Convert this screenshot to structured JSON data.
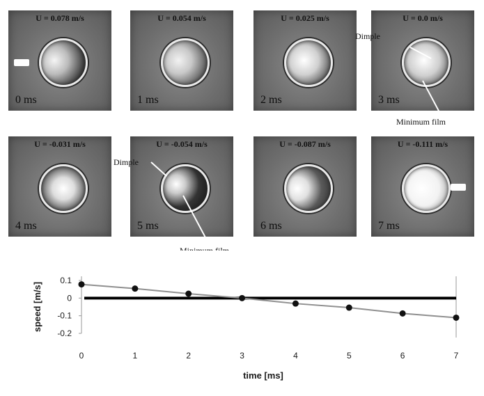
{
  "panels": [
    {
      "speed": "U = 0.078 m/s",
      "time": "0 ms"
    },
    {
      "speed": "U = 0.054 m/s",
      "time": "1 ms"
    },
    {
      "speed": "U = 0.025 m/s",
      "time": "2 ms"
    },
    {
      "speed": "U = 0.0 m/s",
      "time": "3 ms"
    },
    {
      "speed": "U = -0.031 m/s",
      "time": "4 ms"
    },
    {
      "speed": "U = -0.054 m/s",
      "time": "5 ms"
    },
    {
      "speed": "U = -0.087 m/s",
      "time": "6 ms"
    },
    {
      "speed": "U = -0.111 m/s",
      "time": "7 ms"
    }
  ],
  "annotations": {
    "dimple": "Dimple",
    "minimum_film": "Minimum film"
  },
  "chart_data": {
    "type": "line",
    "x": [
      0,
      1,
      2,
      3,
      4,
      5,
      6,
      7
    ],
    "series": [
      {
        "values": [
          0.078,
          0.054,
          0.025,
          0.0,
          -0.031,
          -0.054,
          -0.087,
          -0.111
        ]
      }
    ],
    "xlabel": "time [ms]",
    "ylabel": "speed [m/s]",
    "x_ticks": [
      "0",
      "1",
      "2",
      "3",
      "4",
      "5",
      "6",
      "7"
    ],
    "y_ticks": [
      "0.1",
      "0",
      "-0.1",
      "-0.2"
    ],
    "xlim": [
      0,
      7
    ],
    "ylim": [
      -0.2,
      0.1
    ],
    "zero_line": true,
    "grid": false,
    "legend": "none",
    "line_color": "#8f8f8f",
    "marker_color": "#111111"
  }
}
